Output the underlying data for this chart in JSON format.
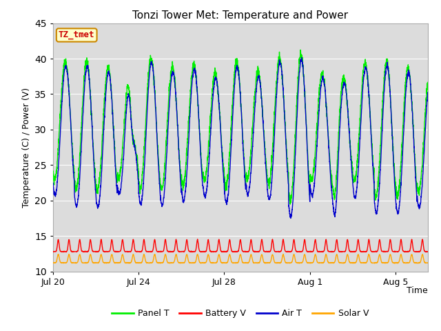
{
  "title": "Tonzi Tower Met: Temperature and Power",
  "ylabel": "Temperature (C) / Power (V)",
  "ylim": [
    10,
    45
  ],
  "n_days": 17.5,
  "x_ticks_labels": [
    "Jul 20",
    "Jul 24",
    "Jul 28",
    "Aug 1",
    "Aug 5"
  ],
  "x_ticks_pos": [
    0,
    4,
    8,
    12,
    16
  ],
  "y_ticks": [
    10,
    15,
    20,
    25,
    30,
    35,
    40,
    45
  ],
  "fig_bg_color": "#ffffff",
  "plot_bg_color": "#dcdcdc",
  "grid_color": "#ffffff",
  "panel_t_color": "#00ee00",
  "battery_v_color": "#ff0000",
  "air_t_color": "#0000cc",
  "solar_v_color": "#ffa500",
  "label_box_facecolor": "#ffffcc",
  "label_box_edgecolor": "#cc8800",
  "label_text_color": "#cc0000",
  "label_text": "TZ_tmet",
  "legend_labels": [
    "Panel T",
    "Battery V",
    "Air T",
    "Solar V"
  ],
  "n_points": 3000
}
